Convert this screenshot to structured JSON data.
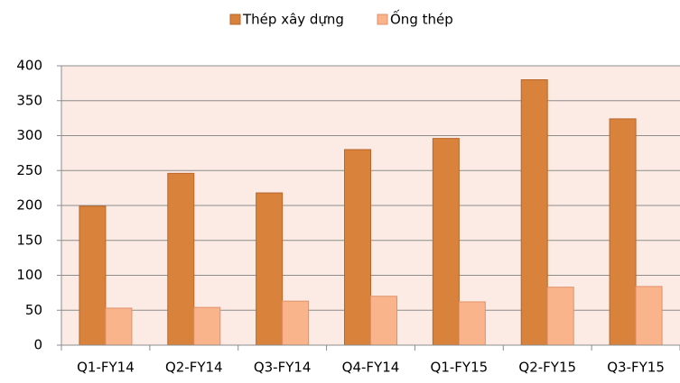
{
  "chart_data": {
    "type": "bar",
    "categories": [
      "Q1-FY14",
      "Q2-FY14",
      "Q3-FY14",
      "Q4-FY14",
      "Q1-FY15",
      "Q2-FY15",
      "Q3-FY15"
    ],
    "series": [
      {
        "name": "Thép xây dựng",
        "color": "#d9823b",
        "values": [
          199,
          246,
          218,
          280,
          296,
          380,
          324
        ]
      },
      {
        "name": "Ống thép",
        "color": "#f9b48c",
        "values": [
          53,
          54,
          63,
          70,
          62,
          83,
          84
        ]
      }
    ],
    "ylim": [
      0,
      400
    ],
    "yticks": [
      0,
      50,
      100,
      150,
      200,
      250,
      300,
      350,
      400
    ],
    "grid": true
  }
}
